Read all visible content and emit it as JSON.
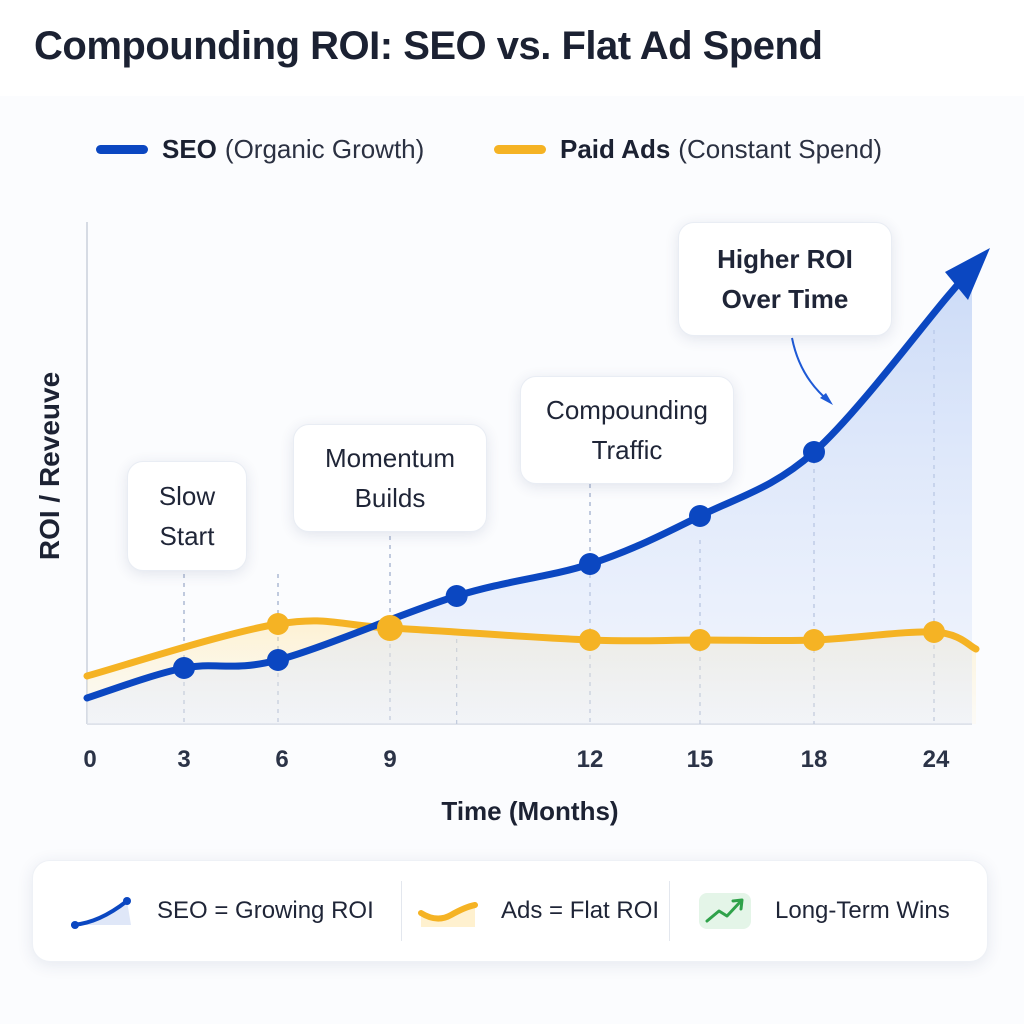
{
  "page": {
    "title": "Compounding ROI: SEO vs. Flat Ad Spend"
  },
  "legend": [
    {
      "name": "SEO",
      "desc": "(Organic Growth)",
      "color": "#0b47c1"
    },
    {
      "name": "Paid Ads",
      "desc": "(Constant Spend)",
      "color": "#f5b324"
    }
  ],
  "chart_data": {
    "type": "line",
    "xlabel": "Time (Months)",
    "ylabel": "ROI / Reveuve",
    "x_ticks": [
      0,
      3,
      6,
      9,
      12,
      15,
      18,
      24
    ],
    "series": [
      {
        "name": "SEO",
        "color": "#0b47c1",
        "x": [
          3,
          6,
          10,
          12,
          15,
          18
        ],
        "y": [
          8,
          10,
          26,
          34,
          46,
          62
        ]
      },
      {
        "name": "Paid Ads",
        "color": "#f5b324",
        "x": [
          6,
          9,
          12,
          15,
          18,
          24
        ],
        "y": [
          19,
          18,
          15,
          15,
          15,
          17
        ]
      }
    ],
    "annotations": [
      {
        "text": "Slow Start",
        "x": 3
      },
      {
        "text": "Momentum Builds",
        "x": 9
      },
      {
        "text": "Compounding Traffic",
        "x": 12
      },
      {
        "text": "Higher ROI Over Time",
        "x": 24
      }
    ],
    "grid": "vertical-dashed",
    "legend_position": "top"
  },
  "callouts": {
    "slow_start": [
      "Slow",
      "Start"
    ],
    "momentum": [
      "Momentum",
      "Builds"
    ],
    "compounding": [
      "Compounding",
      "Traffic"
    ],
    "higher_roi": [
      "Higher ROI",
      "Over Time"
    ]
  },
  "footer": [
    {
      "label": "SEO = Growing ROI",
      "icon": "seo-curve-icon"
    },
    {
      "label": "Ads = Flat ROI",
      "icon": "ads-flat-icon"
    },
    {
      "label": "Long-Term Wins",
      "icon": "trend-up-icon"
    }
  ]
}
